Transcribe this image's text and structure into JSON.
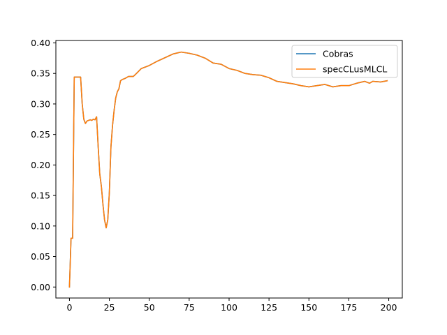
{
  "chart_data": {
    "type": "line",
    "title": "",
    "xlabel": "",
    "ylabel": "",
    "xlim": [
      -8.5,
      208.5
    ],
    "ylim": [
      -0.018,
      0.404
    ],
    "xticks": [
      0,
      25,
      50,
      75,
      100,
      125,
      150,
      175,
      200
    ],
    "xtick_labels": [
      "0",
      "25",
      "50",
      "75",
      "100",
      "125",
      "150",
      "175",
      "200"
    ],
    "yticks": [
      0.0,
      0.05,
      0.1,
      0.15,
      0.2,
      0.25,
      0.3,
      0.35,
      0.4
    ],
    "ytick_labels": [
      "0.00",
      "0.05",
      "0.10",
      "0.15",
      "0.20",
      "0.25",
      "0.30",
      "0.35",
      "0.40"
    ],
    "grid": false,
    "legend_position": "top-right",
    "series": [
      {
        "name": "Cobras",
        "color": "#1f77b4",
        "points": [
          [
            0,
            0.0
          ],
          [
            1,
            0.08
          ],
          [
            2,
            0.08
          ],
          [
            3,
            0.344
          ],
          [
            4,
            0.344
          ],
          [
            5,
            0.344
          ],
          [
            6,
            0.344
          ],
          [
            7,
            0.344
          ],
          [
            8,
            0.3
          ],
          [
            9,
            0.275
          ],
          [
            10,
            0.268
          ],
          [
            11,
            0.272
          ],
          [
            12,
            0.273
          ],
          [
            13,
            0.274
          ],
          [
            14,
            0.273
          ],
          [
            15,
            0.275
          ],
          [
            16,
            0.274
          ],
          [
            17,
            0.279
          ],
          [
            18,
            0.23
          ],
          [
            19,
            0.185
          ],
          [
            20,
            0.165
          ],
          [
            21,
            0.135
          ],
          [
            22,
            0.11
          ],
          [
            23,
            0.097
          ],
          [
            24,
            0.11
          ],
          [
            25,
            0.155
          ],
          [
            26,
            0.23
          ],
          [
            27,
            0.265
          ],
          [
            28,
            0.29
          ],
          [
            29,
            0.31
          ],
          [
            30,
            0.32
          ],
          [
            31,
            0.325
          ],
          [
            32,
            0.338
          ],
          [
            33,
            0.34
          ],
          [
            35,
            0.342
          ],
          [
            37,
            0.345
          ],
          [
            40,
            0.345
          ],
          [
            42,
            0.35
          ],
          [
            45,
            0.358
          ],
          [
            50,
            0.363
          ],
          [
            55,
            0.37
          ],
          [
            60,
            0.376
          ],
          [
            65,
            0.382
          ],
          [
            70,
            0.385
          ],
          [
            75,
            0.383
          ],
          [
            80,
            0.38
          ],
          [
            85,
            0.375
          ],
          [
            90,
            0.367
          ],
          [
            95,
            0.365
          ],
          [
            100,
            0.358
          ],
          [
            105,
            0.355
          ],
          [
            110,
            0.35
          ],
          [
            115,
            0.348
          ],
          [
            120,
            0.347
          ],
          [
            125,
            0.343
          ],
          [
            130,
            0.337
          ],
          [
            135,
            0.335
          ],
          [
            140,
            0.333
          ],
          [
            145,
            0.33
          ],
          [
            150,
            0.328
          ],
          [
            155,
            0.33
          ],
          [
            160,
            0.332
          ],
          [
            165,
            0.328
          ],
          [
            170,
            0.33
          ],
          [
            175,
            0.33
          ],
          [
            180,
            0.334
          ],
          [
            185,
            0.337
          ],
          [
            188,
            0.334
          ],
          [
            190,
            0.337
          ],
          [
            195,
            0.336
          ],
          [
            199,
            0.338
          ]
        ]
      },
      {
        "name": "specCLusMLCL",
        "color": "#ff7f0e",
        "points": [
          [
            0,
            0.0
          ],
          [
            1,
            0.08
          ],
          [
            2,
            0.08
          ],
          [
            3,
            0.344
          ],
          [
            4,
            0.344
          ],
          [
            5,
            0.344
          ],
          [
            6,
            0.344
          ],
          [
            7,
            0.344
          ],
          [
            8,
            0.3
          ],
          [
            9,
            0.275
          ],
          [
            10,
            0.268
          ],
          [
            11,
            0.272
          ],
          [
            12,
            0.273
          ],
          [
            13,
            0.274
          ],
          [
            14,
            0.273
          ],
          [
            15,
            0.275
          ],
          [
            16,
            0.274
          ],
          [
            17,
            0.279
          ],
          [
            18,
            0.23
          ],
          [
            19,
            0.185
          ],
          [
            20,
            0.165
          ],
          [
            21,
            0.135
          ],
          [
            22,
            0.11
          ],
          [
            23,
            0.097
          ],
          [
            24,
            0.11
          ],
          [
            25,
            0.155
          ],
          [
            26,
            0.23
          ],
          [
            27,
            0.265
          ],
          [
            28,
            0.29
          ],
          [
            29,
            0.31
          ],
          [
            30,
            0.32
          ],
          [
            31,
            0.325
          ],
          [
            32,
            0.338
          ],
          [
            33,
            0.34
          ],
          [
            35,
            0.342
          ],
          [
            37,
            0.345
          ],
          [
            40,
            0.345
          ],
          [
            42,
            0.35
          ],
          [
            45,
            0.358
          ],
          [
            50,
            0.363
          ],
          [
            55,
            0.37
          ],
          [
            60,
            0.376
          ],
          [
            65,
            0.382
          ],
          [
            70,
            0.385
          ],
          [
            75,
            0.383
          ],
          [
            80,
            0.38
          ],
          [
            85,
            0.375
          ],
          [
            90,
            0.367
          ],
          [
            95,
            0.365
          ],
          [
            100,
            0.358
          ],
          [
            105,
            0.355
          ],
          [
            110,
            0.35
          ],
          [
            115,
            0.348
          ],
          [
            120,
            0.347
          ],
          [
            125,
            0.343
          ],
          [
            130,
            0.337
          ],
          [
            135,
            0.335
          ],
          [
            140,
            0.333
          ],
          [
            145,
            0.33
          ],
          [
            150,
            0.328
          ],
          [
            155,
            0.33
          ],
          [
            160,
            0.332
          ],
          [
            165,
            0.328
          ],
          [
            170,
            0.33
          ],
          [
            175,
            0.33
          ],
          [
            180,
            0.334
          ],
          [
            185,
            0.337
          ],
          [
            188,
            0.334
          ],
          [
            190,
            0.337
          ],
          [
            195,
            0.336
          ],
          [
            199,
            0.338
          ]
        ]
      }
    ]
  }
}
